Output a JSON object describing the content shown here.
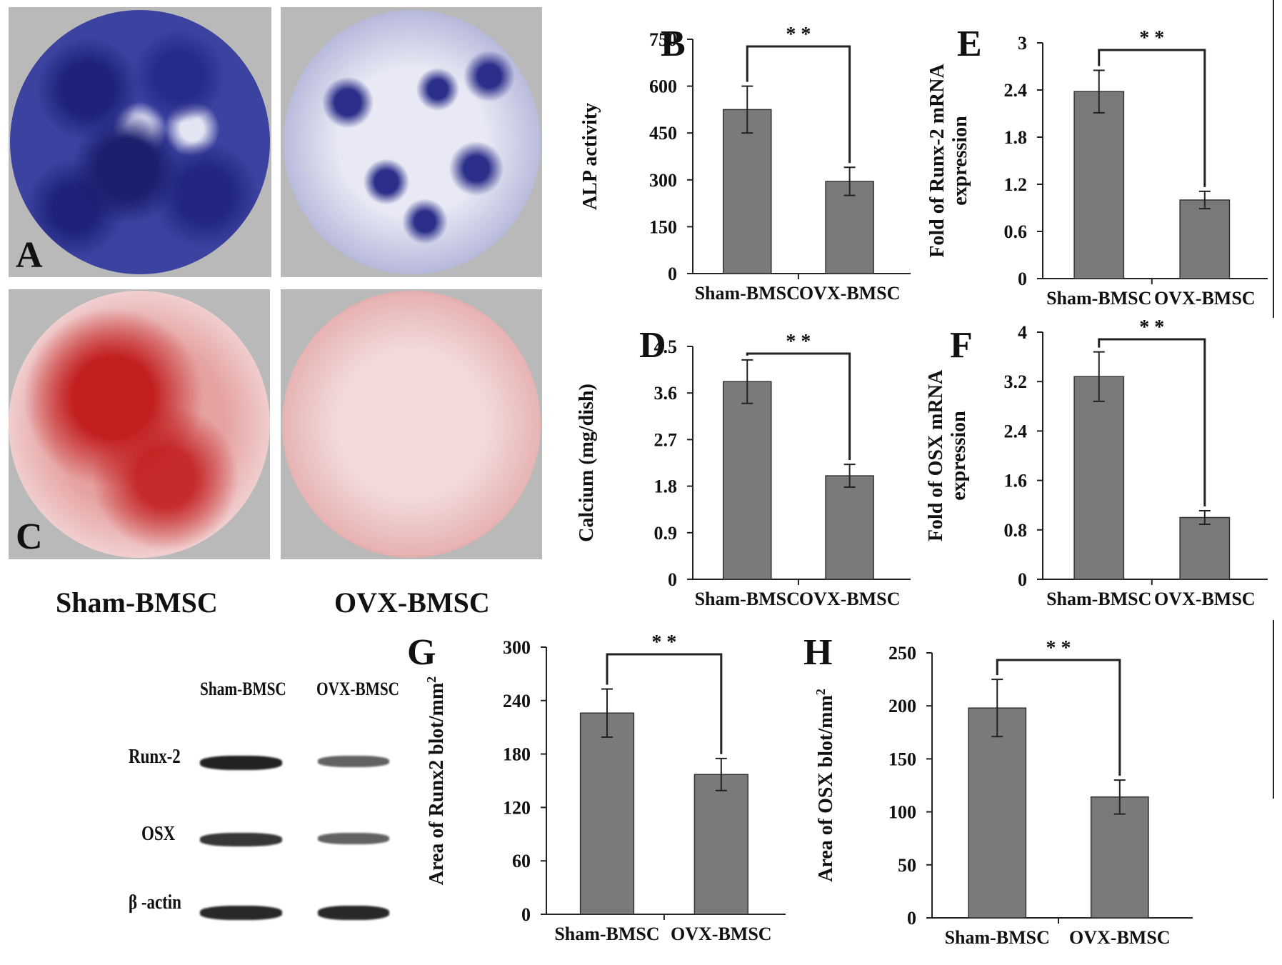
{
  "panels": {
    "A": "A",
    "C": "C"
  },
  "groups": [
    "Sham-BMSC",
    "OVX-BMSC"
  ],
  "colors": {
    "bar": "#7a7a7a",
    "alp_stain": "#2b2f8a",
    "ars_stain": "#c62b2b",
    "photo_bg": "#b9b9b9"
  },
  "blot": {
    "lanes": [
      "Sham-BMSC",
      "OVX-BMSC"
    ],
    "rows": [
      "Runx-2",
      "OSX",
      "β -actin"
    ],
    "intensity": [
      [
        1.0,
        0.55
      ],
      [
        0.85,
        0.55
      ],
      [
        0.95,
        0.95
      ]
    ]
  },
  "chart_data": [
    {
      "id": "B",
      "type": "bar",
      "panel_letter": "B",
      "categories": [
        "Sham-BMSC",
        "OVX-BMSC"
      ],
      "values": [
        525,
        295
      ],
      "errors": [
        75,
        45
      ],
      "ylabel": "ALP activity",
      "ylim": [
        0,
        750
      ],
      "yticks": [
        "0",
        "150",
        "300",
        "450",
        "600",
        "750"
      ],
      "annotation": "* *"
    },
    {
      "id": "E",
      "type": "bar",
      "panel_letter": "E",
      "categories": [
        "Sham-BMSC",
        "OVX-BMSC"
      ],
      "values": [
        2.38,
        1.0
      ],
      "errors": [
        0.27,
        0.11
      ],
      "ylabel_lines": [
        "Fold of Runx-2 mRNA",
        "expression"
      ],
      "ylim": [
        0,
        3
      ],
      "yticks": [
        "0",
        "0.6",
        "1.2",
        "1.8",
        "2.4",
        "3"
      ],
      "annotation": "* *"
    },
    {
      "id": "D",
      "type": "bar",
      "panel_letter": "D",
      "categories": [
        "Sham-BMSC",
        "OVX-BMSC"
      ],
      "values": [
        3.82,
        2.0
      ],
      "errors": [
        0.42,
        0.22
      ],
      "ylabel": "Calcium (mg/dish)",
      "ylim": [
        0,
        4.5
      ],
      "yticks": [
        "0",
        "0.9",
        "1.8",
        "2.7",
        "3.6",
        "4.5"
      ],
      "annotation": "* *"
    },
    {
      "id": "F",
      "type": "bar",
      "panel_letter": "F",
      "categories": [
        "Sham-BMSC",
        "OVX-BMSC"
      ],
      "values": [
        3.28,
        1.0
      ],
      "errors": [
        0.4,
        0.11
      ],
      "ylabel_lines": [
        "Fold of OSX mRNA",
        "expression"
      ],
      "ylim": [
        0,
        4
      ],
      "yticks": [
        "0",
        "0.8",
        "1.6",
        "2.4",
        "3.2",
        "4"
      ],
      "annotation": "* *"
    },
    {
      "id": "G",
      "type": "bar",
      "panel_letter": "G",
      "categories": [
        "Sham-BMSC",
        "OVX-BMSC"
      ],
      "values": [
        226,
        157
      ],
      "errors": [
        27,
        18
      ],
      "ylabel": "Area of Runx2 blot/mm",
      "ylabel_sup": "2",
      "ylim": [
        0,
        300
      ],
      "yticks": [
        "0",
        "60",
        "120",
        "180",
        "240",
        "300"
      ],
      "annotation": "* *"
    },
    {
      "id": "H",
      "type": "bar",
      "panel_letter": "H",
      "categories": [
        "Sham-BMSC",
        "OVX-BMSC"
      ],
      "values": [
        198,
        114
      ],
      "errors": [
        27,
        16
      ],
      "ylabel": "Area of OSX blot/mm",
      "ylabel_sup": "2",
      "ylim": [
        0,
        250
      ],
      "yticks": [
        "0",
        "50",
        "100",
        "150",
        "200",
        "250"
      ],
      "annotation": "* *"
    }
  ]
}
